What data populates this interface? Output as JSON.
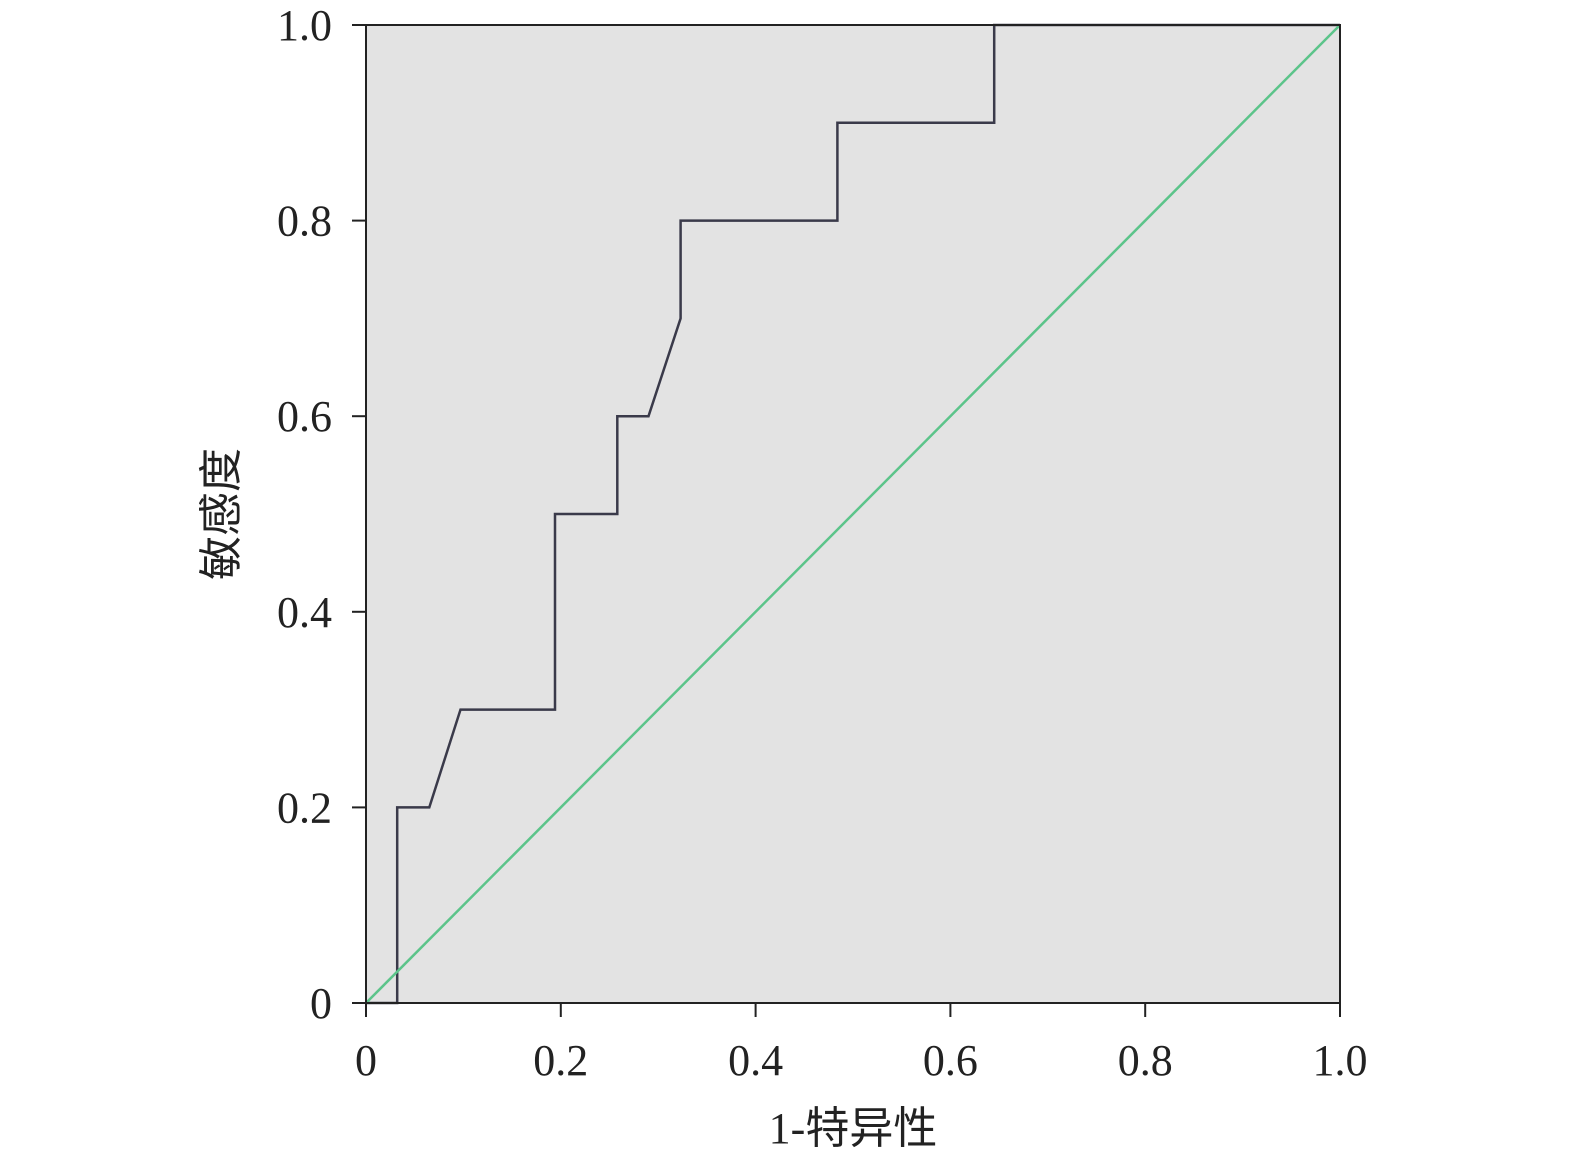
{
  "chart_data": {
    "type": "line",
    "title": "",
    "xlabel": "1-特异性",
    "ylabel": "敏感度",
    "xlim": [
      0,
      1.0
    ],
    "ylim": [
      0,
      1.0
    ],
    "xticks": [
      "0",
      "0.2",
      "0.4",
      "0.6",
      "0.8",
      "1.0"
    ],
    "yticks": [
      "0",
      "0.2",
      "0.4",
      "0.6",
      "0.8",
      "1.0"
    ],
    "grid": false,
    "series": [
      {
        "x": [
          0,
          0.032,
          0.032,
          0.065,
          0.097,
          0.194,
          0.194,
          0.258,
          0.258,
          0.29,
          0.323,
          0.323,
          0.484,
          0.484,
          0.645,
          0.645,
          1.0
        ],
        "y": [
          0,
          0,
          0.2,
          0.2,
          0.3,
          0.3,
          0.5,
          0.5,
          0.6,
          0.6,
          0.7,
          0.8,
          0.8,
          0.9,
          0.9,
          1.0,
          1.0
        ],
        "color": "#3a3a4a"
      },
      {
        "x": [
          0,
          1.0
        ],
        "y": [
          0,
          1.0
        ],
        "color": "#5cc48a"
      }
    ],
    "background_color": "#e3e3e3"
  }
}
